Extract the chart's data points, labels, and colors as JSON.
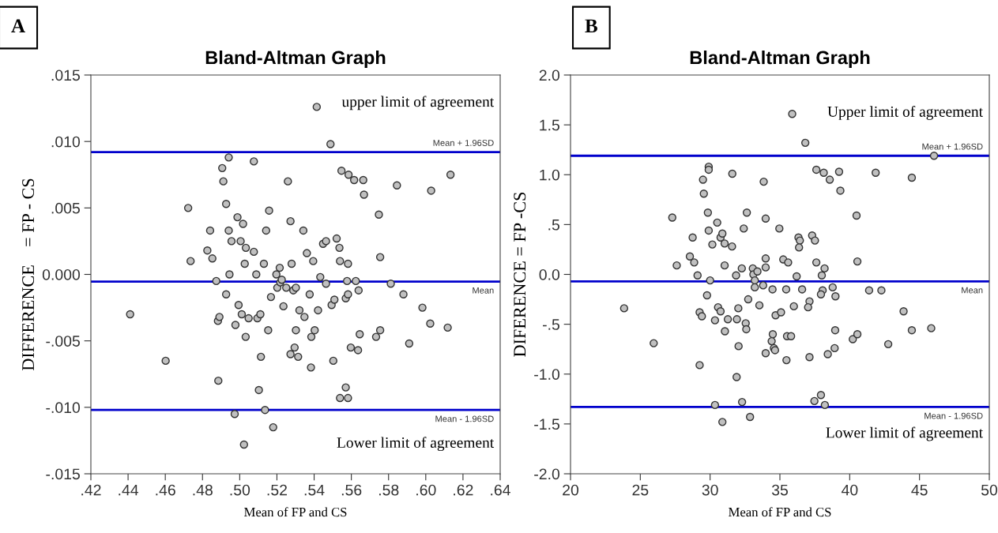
{
  "chart_data": [
    {
      "type": "scatter",
      "title": "Bland-Altman Graph",
      "xlabel": "Mean of FP and CS",
      "ylabel": "DIFFERENCE    = FP - CS",
      "annotations": [
        "A",
        "upper limit of agreement",
        "Lower limit of agreement"
      ],
      "xlim": [
        0.42,
        0.64
      ],
      "xticks": [
        {
          "value": 0.42,
          "label": ".42"
        },
        {
          "value": 0.44,
          "label": ".44"
        },
        {
          "value": 0.46,
          "label": ".46"
        },
        {
          "value": 0.48,
          "label": ".48"
        },
        {
          "value": 0.5,
          "label": ".50"
        },
        {
          "value": 0.52,
          "label": ".52"
        },
        {
          "value": 0.54,
          "label": ".54"
        },
        {
          "value": 0.56,
          "label": ".56"
        },
        {
          "value": 0.58,
          "label": ".58"
        },
        {
          "value": 0.6,
          "label": ".60"
        },
        {
          "value": 0.62,
          "label": ".62"
        },
        {
          "value": 0.64,
          "label": ".64"
        }
      ],
      "ylim": [
        -0.015,
        0.015
      ],
      "yticks": [
        {
          "value": -0.015,
          "label": "-.015"
        },
        {
          "value": -0.01,
          "label": "-.010"
        },
        {
          "value": -0.005,
          "label": "-.005"
        },
        {
          "value": 0,
          "label": "0.000"
        },
        {
          "value": 0.005,
          "label": ".005"
        },
        {
          "value": 0.01,
          "label": ".010"
        },
        {
          "value": 0.015,
          "label": ".015"
        }
      ],
      "grid": false,
      "marker": "circle",
      "ref_lines": [
        {
          "axis": "y",
          "value": 0.0092,
          "label": "Mean + 1.96SD",
          "color": "#0000cc"
        },
        {
          "axis": "y",
          "value": -0.00054,
          "label": "Mean",
          "color": "#0000cc"
        },
        {
          "axis": "y",
          "value": -0.0102,
          "label": "Mean - 1.96SD",
          "color": "#0000cc"
        }
      ],
      "series": [
        {
          "color": "#c0c0c0",
          "x": [
            0.4411,
            0.4602,
            0.4723,
            0.4736,
            0.4826,
            0.4853,
            0.4841,
            0.4874,
            0.4885,
            0.4883,
            0.4891,
            0.4906,
            0.4912,
            0.4927,
            0.4941,
            0.4941,
            0.4945,
            0.4956,
            0.4927,
            0.4988,
            0.4994,
            0.4977,
            0.5005,
            0.5011,
            0.5018,
            0.5027,
            0.5033,
            0.5032,
            0.5048,
            0.4973,
            0.5023,
            0.5076,
            0.5076,
            0.5089,
            0.5095,
            0.5111,
            0.5114,
            0.5103,
            0.5136,
            0.518,
            0.513,
            0.5142,
            0.5158,
            0.5153,
            0.5168,
            0.5197,
            0.5202,
            0.5215,
            0.5218,
            0.5226,
            0.5235,
            0.525,
            0.5259,
            0.5273,
            0.5279,
            0.5288,
            0.5302,
            0.5302,
            0.5295,
            0.5273,
            0.5314,
            0.5321,
            0.5348,
            0.5342,
            0.5361,
            0.5414,
            0.5488,
            0.5547,
            0.5585,
            0.5615,
            0.5664,
            0.5668,
            0.5845,
            0.6029,
            0.6133,
            0.5748,
            0.5395,
            0.5448,
            0.5464,
            0.5521,
            0.5536,
            0.5539,
            0.5582,
            0.5755,
            0.5433,
            0.5464,
            0.5577,
            0.5624,
            0.5812,
            0.5376,
            0.5639,
            0.557,
            0.5582,
            0.5494,
            0.5509,
            0.588,
            0.5421,
            0.5982,
            0.6024,
            0.6118,
            0.5403,
            0.5385,
            0.5645,
            0.5733,
            0.5755,
            0.5597,
            0.5636,
            0.5911,
            0.5383,
            0.5503,
            0.557,
            0.5539,
            0.5582
          ],
          "values": [
            -0.003,
            -0.0065,
            0.005,
            0.001,
            0.0018,
            0.0012,
            0.0033,
            -0.0005,
            -0.008,
            -0.0035,
            -0.0032,
            0.008,
            0.007,
            0.0053,
            0.0088,
            0.0033,
            0.0,
            0.0025,
            -0.0015,
            0.0043,
            -0.0023,
            -0.0038,
            0.0025,
            -0.003,
            0.0038,
            0.0008,
            0.002,
            -0.0047,
            -0.0033,
            -0.0105,
            -0.0128,
            0.0085,
            0.0017,
            0.0,
            -0.0033,
            -0.003,
            -0.0062,
            -0.0087,
            -0.0102,
            -0.0115,
            0.0008,
            0.0033,
            0.0048,
            -0.0042,
            -0.0017,
            0.0,
            -0.001,
            0.0005,
            -0.0006,
            -0.0004,
            -0.0024,
            -0.001,
            0.007,
            0.004,
            0.0008,
            -0.0012,
            -0.001,
            -0.0042,
            -0.0055,
            -0.006,
            -0.0062,
            -0.0027,
            -0.0032,
            0.0033,
            0.0016,
            0.0126,
            0.0098,
            0.0078,
            0.0075,
            0.0071,
            0.0071,
            0.006,
            0.0067,
            0.0063,
            0.0075,
            0.0045,
            0.001,
            0.0023,
            0.0025,
            0.0027,
            0.002,
            0.001,
            0.0008,
            0.0013,
            -0.0002,
            -0.0007,
            -0.0005,
            -0.0005,
            -0.0007,
            -0.0015,
            -0.0012,
            -0.0018,
            -0.0015,
            -0.0023,
            -0.0019,
            -0.0015,
            -0.0027,
            -0.0025,
            -0.0037,
            -0.004,
            -0.0042,
            -0.0047,
            -0.0045,
            -0.0047,
            -0.0042,
            -0.0055,
            -0.0057,
            -0.0052,
            -0.007,
            -0.0065,
            -0.0085,
            -0.0093,
            -0.0093
          ]
        }
      ]
    },
    {
      "type": "scatter",
      "title": "Bland-Altman Graph",
      "xlabel": "Mean of FP and CS",
      "ylabel": "DIFERENCE = FP -CS",
      "annotations": [
        "B",
        "Upper limit of agreement",
        "Lower limit of agreement"
      ],
      "xlim": [
        20,
        50
      ],
      "xticks": [
        20,
        25,
        30,
        35,
        40,
        45,
        50
      ],
      "ylim": [
        -2.0,
        2.0
      ],
      "yticks": [
        {
          "value": -2.0,
          "label": "-2.0"
        },
        {
          "value": -1.5,
          "label": "-1.5"
        },
        {
          "value": -1.0,
          "label": "-1.0"
        },
        {
          "value": -0.5,
          "label": "-.5"
        },
        {
          "value": 0,
          "label": "0.0"
        },
        {
          "value": 0.5,
          "label": ".5"
        },
        {
          "value": 1.0,
          "label": "1.0"
        },
        {
          "value": 1.5,
          "label": "1.5"
        },
        {
          "value": 2.0,
          "label": "2.0"
        }
      ],
      "grid": false,
      "marker": "circle",
      "ref_lines": [
        {
          "axis": "y",
          "value": 1.19,
          "label": "Mean + 1.96SD",
          "color": "#0000cc"
        },
        {
          "axis": "y",
          "value": -0.07,
          "label": "Mean",
          "color": "#0000cc"
        },
        {
          "axis": "y",
          "value": -1.33,
          "label": "Mean - 1.96SD",
          "color": "#0000cc"
        }
      ],
      "series": [
        {
          "color": "#c0c0c0",
          "x": [
            23.84,
            25.96,
            27.29,
            27.61,
            28.55,
            28.86,
            28.75,
            29.1,
            29.25,
            29.25,
            29.41,
            29.49,
            29.55,
            29.9,
            29.9,
            29.84,
            29.9,
            30.0,
            29.78,
            30.16,
            30.35,
            30.35,
            30.51,
            30.57,
            30.75,
            30.75,
            30.88,
            31.04,
            31.04,
            31.06,
            30.88,
            31.27,
            31.59,
            31.57,
            31.86,
            32.02,
            31.92,
            32.04,
            31.9,
            32.29,
            32.27,
            32.41,
            32.63,
            32.55,
            32.59,
            32.73,
            32.86,
            33.06,
            33.1,
            33.39,
            33.2,
            33.2,
            33.53,
            33.8,
            33.84,
            33.98,
            33.98,
            33.98,
            33.98,
            35.88,
            36.82,
            46.04,
            37.61,
            38.14,
            39.24,
            38.57,
            39.33,
            41.86,
            44.45,
            34.96,
            36.33,
            36.43,
            36.37,
            37.31,
            37.51,
            40.49,
            40.55,
            35.24,
            35.59,
            37.61,
            38.2,
            38.0,
            36.2,
            34.47,
            35.45,
            36.59,
            38.06,
            37.94,
            38.78,
            38.98,
            41.39,
            42.27,
            36.0,
            37.12,
            37.02,
            34.69,
            35.08,
            43.86,
            34.49,
            34.41,
            34.57,
            34.65,
            35.51,
            35.8,
            35.47,
            38.96,
            40.22,
            40.55,
            42.76,
            44.45,
            45.84,
            37.12,
            38.43,
            38.92,
            37.94,
            37.47,
            38.22
          ],
          "values": [
            -0.34,
            -0.69,
            0.57,
            0.09,
            0.18,
            0.12,
            0.37,
            -0.01,
            -0.91,
            -0.38,
            -0.42,
            0.95,
            0.81,
            1.08,
            1.05,
            0.62,
            0.44,
            -0.06,
            -0.21,
            0.3,
            -0.46,
            -1.31,
            0.52,
            -0.33,
            -0.37,
            0.37,
            0.41,
            0.31,
            0.09,
            -0.57,
            -1.48,
            -0.45,
            1.01,
            0.28,
            -0.01,
            -0.34,
            -0.45,
            -0.72,
            -1.03,
            -1.28,
            0.06,
            0.46,
            0.62,
            -0.49,
            -0.55,
            -0.25,
            -1.43,
            0.06,
            0.0,
            0.03,
            -0.06,
            -0.13,
            -0.31,
            -0.11,
            0.93,
            0.56,
            0.16,
            0.07,
            -0.79,
            1.61,
            1.32,
            1.19,
            1.05,
            1.02,
            1.03,
            0.95,
            0.84,
            1.02,
            0.97,
            0.46,
            0.37,
            0.34,
            0.27,
            0.39,
            0.34,
            0.59,
            0.13,
            0.15,
            0.12,
            0.12,
            0.06,
            -0.01,
            -0.02,
            -0.15,
            -0.15,
            -0.15,
            -0.16,
            -0.2,
            -0.13,
            -0.22,
            -0.16,
            -0.16,
            -0.32,
            -0.27,
            -0.33,
            -0.41,
            -0.38,
            -0.37,
            -0.6,
            -0.67,
            -0.74,
            -0.76,
            -0.62,
            -0.62,
            -0.86,
            -0.56,
            -0.65,
            -0.6,
            -0.7,
            -0.56,
            -0.54,
            -0.83,
            -0.8,
            -0.74,
            -1.21,
            -1.27,
            -1.31
          ]
        }
      ]
    }
  ]
}
